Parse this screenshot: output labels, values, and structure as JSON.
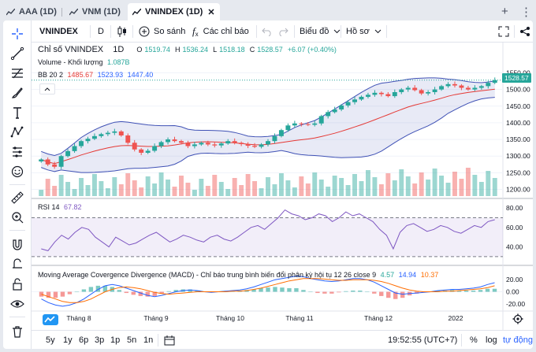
{
  "tabs": [
    {
      "label": "AAA (1D)"
    },
    {
      "label": "VNM (1D)"
    },
    {
      "label": "VNINDEX (1D)"
    }
  ],
  "toolbar": {
    "symbol": "VNINDEX",
    "interval": "D",
    "compare_label": "So sánh",
    "indicators_label": "Các chỉ báo",
    "chart_type_label": "Biểu đồ",
    "profile_label": "Hồ sơ"
  },
  "legend": {
    "title": "Chỉ số VNINDEX",
    "interval": "1D",
    "o_label": "O",
    "o": "1519.74",
    "h_label": "H",
    "h": "1536.24",
    "l_label": "L",
    "l": "1518.18",
    "c_label": "C",
    "c": "1528.57",
    "change": "+6.07 (+0.40%)",
    "volume_label": "Volume - Khối lượng",
    "volume_value": "1.087B",
    "bb_label": "BB 20 2",
    "bb_mid": "1485.67",
    "bb_upper": "1523.93",
    "bb_lower": "1447.40",
    "rsi_label": "RSI 14",
    "rsi_value": "67.82",
    "macd_label": "Moving Average Covergence Divergence (MACD) - Chỉ báo trung bình biến đổi phân kỳ hội tụ 12 26 close 9",
    "macd_v1": "4.57",
    "macd_v2": "14.94",
    "macd_v3": "10.37"
  },
  "price_tag": "1528.57",
  "colors": {
    "up": "#26a69a",
    "down": "#ef5350",
    "bb_band": "#3f51b5",
    "bb_mid": "#e53935",
    "rsi": "#7e57c2",
    "macd": "#2962ff",
    "signal": "#ff6d00"
  },
  "chart_data": [
    {
      "type": "candlestick",
      "title": "Chỉ số VNINDEX 1D",
      "y_ticks": [
        "1550.00",
        "1500.00",
        "1450.00",
        "1400.00",
        "1350.00",
        "1300.00",
        "1250.00",
        "1200.00"
      ],
      "x_ticks": [
        "Tháng 8",
        "Tháng 9",
        "Tháng 10",
        "Tháng 11",
        "Tháng 12",
        "2022"
      ],
      "ylim": [
        1180,
        1570
      ],
      "close_series": [
        1290,
        1275,
        1268,
        1300,
        1315,
        1330,
        1345,
        1352,
        1360,
        1366,
        1370,
        1374,
        1362,
        1340,
        1320,
        1310,
        1316,
        1330,
        1342,
        1350,
        1345,
        1340,
        1330,
        1335,
        1340,
        1335,
        1332,
        1338,
        1345,
        1340,
        1336,
        1331,
        1328,
        1335,
        1345,
        1360,
        1378,
        1392,
        1398,
        1396,
        1394,
        1398,
        1420,
        1432,
        1440,
        1452,
        1462,
        1470,
        1478,
        1484,
        1490,
        1486,
        1480,
        1492,
        1500,
        1505,
        1498,
        1488,
        1492,
        1500,
        1510,
        1516,
        1512,
        1505,
        1500,
        1505,
        1510,
        1520,
        1528
      ]
    },
    {
      "type": "line",
      "title": "RSI 14",
      "y_ticks": [
        "80.00",
        "60.00",
        "40.00"
      ],
      "ylim": [
        25,
        85
      ],
      "values": [
        38,
        36,
        45,
        52,
        48,
        55,
        60,
        58,
        50,
        45,
        40,
        50,
        46,
        42,
        44,
        48,
        52,
        55,
        50,
        45,
        48,
        52,
        50,
        47,
        45,
        50,
        52,
        48,
        46,
        50,
        55,
        60,
        62,
        58,
        64,
        70,
        78,
        74,
        72,
        68,
        70,
        74,
        72,
        66,
        70,
        76,
        72,
        74,
        70,
        66,
        58,
        52,
        38,
        55,
        62,
        64,
        60,
        56,
        58,
        62,
        60,
        56,
        54,
        58,
        62,
        60,
        66,
        68
      ]
    },
    {
      "type": "line",
      "title": "MACD 12 26 close 9",
      "y_ticks": [
        "20.00",
        "0.00",
        "-20.00"
      ],
      "ylim": [
        -28,
        32
      ],
      "macd": [
        -12,
        -18,
        -22,
        -24,
        -22,
        -18,
        -12,
        -4,
        4,
        10,
        12,
        10,
        6,
        2,
        -2,
        -6,
        -8,
        -6,
        -3,
        0,
        2,
        3,
        2,
        0,
        -1,
        0,
        1,
        2,
        3,
        5,
        8,
        12,
        16,
        20,
        22,
        24,
        26,
        25,
        22,
        20,
        18,
        17,
        18,
        20,
        22,
        22,
        20,
        16,
        10,
        4,
        -2,
        -4,
        -3,
        -2,
        -1,
        0,
        2,
        3,
        4,
        4,
        5,
        6,
        8,
        12,
        15
      ],
      "signal": [
        -4,
        -8,
        -12,
        -16,
        -18,
        -18,
        -16,
        -12,
        -6,
        0,
        4,
        7,
        8,
        7,
        5,
        2,
        -1,
        -3,
        -4,
        -3,
        -2,
        -1,
        0,
        0,
        0,
        0,
        0,
        1,
        1,
        2,
        4,
        6,
        9,
        12,
        15,
        18,
        20,
        22,
        22,
        22,
        21,
        20,
        19,
        19,
        20,
        20,
        20,
        19,
        17,
        14,
        10,
        6,
        3,
        1,
        0,
        0,
        0,
        1,
        1,
        2,
        3,
        4,
        5,
        7,
        10
      ]
    }
  ],
  "bottom": {
    "ranges": [
      "5y",
      "1y",
      "6p",
      "3p",
      "1p",
      "5n",
      "1n"
    ],
    "clock": "19:52:55 (UTC+7)",
    "percent": "%",
    "log": "log",
    "auto": "tự động"
  }
}
